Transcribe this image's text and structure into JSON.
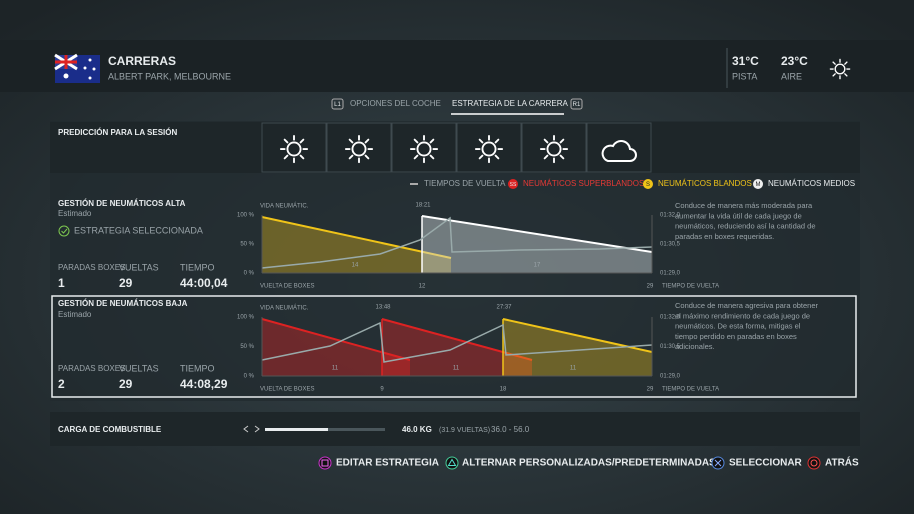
{
  "header": {
    "title": "CARRERAS",
    "subtitle": "ALBERT PARK, MELBOURNE",
    "track_temp": "31°C",
    "track_label": "PISTA",
    "air_temp": "23°C",
    "air_label": "AIRE"
  },
  "tabs": {
    "left_key": "L1",
    "left": "OPCIONES DEL COCHE",
    "active": "ESTRATEGIA DE LA CARRERA",
    "right_key": "R1"
  },
  "forecast_label": "PREDICCIÓN PARA LA SESIÓN",
  "legend": {
    "lap_times": "TIEMPOS DE VUELTA",
    "superblandos_key": "SS",
    "superblandos": "NEUMÁTICOS SUPERBLANDOS",
    "blandos_key": "S",
    "blandos": "NEUMÁTICOS BLANDOS",
    "medios_key": "M",
    "medios": "NEUMÁTICOS MEDIOS"
  },
  "chart_labels": {
    "tyre_life": "VIDA NEUMÁTIC.",
    "pct100": "100 %",
    "pct50": "50 %",
    "pct0": "0 %",
    "time_top": "01:32,0",
    "time_mid": "01:30,5",
    "time_bottom": "01:29,0",
    "pit_lap": "VUELTA DE BOXES",
    "lap_time": "TIEMPO DE VUELTA",
    "last_lap": "29"
  },
  "strategies": [
    {
      "title": "GESTIÓN DE NEUMÁTICOS ALTA",
      "estimate": "Estimado",
      "selected": "ESTRATEGIA SELECCIONADA",
      "stops_label": "PARADAS BOXES",
      "laps_label": "VUELTAS",
      "time_label": "TIEMPO",
      "stops": "1",
      "laps": "29",
      "time": "44:00,04",
      "pit_laps": [
        "12"
      ],
      "pit_times": [
        "18:21"
      ],
      "stint_laps": [
        "14",
        "17"
      ],
      "description": [
        "Conduce de manera más moderada para",
        "aumentar la vida útil de cada juego de",
        "neumáticos, reduciendo así la cantidad de",
        "paradas en boxes requeridas."
      ]
    },
    {
      "title": "GESTIÓN DE NEUMÁTICOS BAJA",
      "estimate": "Estimado",
      "stops_label": "PARADAS BOXES",
      "laps_label": "VUELTAS",
      "time_label": "TIEMPO",
      "stops": "2",
      "laps": "29",
      "time": "44:08,29",
      "pit_laps": [
        "9",
        "18"
      ],
      "pit_times": [
        "13:48",
        "27:37"
      ],
      "stint_laps": [
        "11",
        "11",
        "11"
      ],
      "description": [
        "Conduce de manera agresiva para obtener",
        "el máximo rendimiento de cada juego de",
        "neumáticos. De esta forma, mitigas el",
        "tiempo perdido en paradas en boxes",
        "adicionales."
      ]
    }
  ],
  "fuel": {
    "label": "CARGA DE COMBUSTIBLE",
    "value": "46.0 KG",
    "laps": "(31.9 VUELTAS)",
    "range": "36.0 - 56.0"
  },
  "actions": [
    "EDITAR ESTRATEGIA",
    "ALTERNAR PERSONALIZADAS/PREDETERMINADAS",
    "SELECCIONAR",
    "ATRÁS"
  ]
}
